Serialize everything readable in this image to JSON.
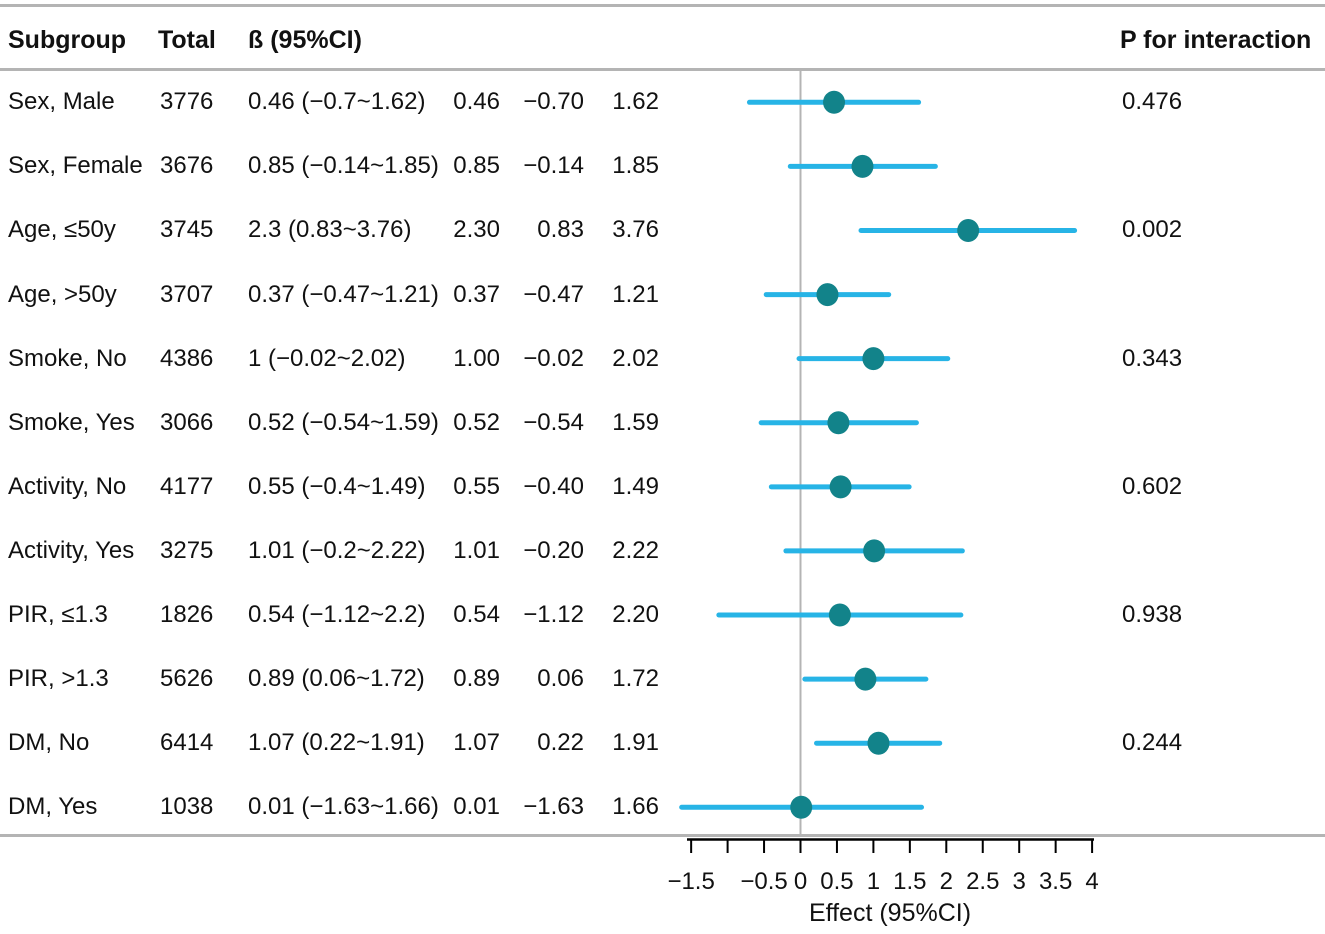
{
  "header": {
    "subgroup": "Subgroup",
    "total": "Total",
    "beta_ci": "ß (95%CI)",
    "p_interaction": "P for interaction"
  },
  "chart_data": {
    "type": "scatter",
    "subtype": "forest-plot",
    "title": "",
    "xlabel": "Effect (95%CI)",
    "ylabel": "",
    "xlim": [
      -1.5,
      4
    ],
    "x_ticks": [
      -1.5,
      -1,
      -0.5,
      0,
      0.5,
      1,
      1.5,
      2,
      2.5,
      3,
      3.5,
      4
    ],
    "x_tick_labels": [
      "−1.5",
      "",
      "−0.5",
      "0",
      "0.5",
      "1",
      "1.5",
      "2",
      "2.5",
      "3",
      "3.5",
      "4"
    ],
    "reference_line_x": 0,
    "grid": false,
    "colors": {
      "ci_line": "#27b4e6",
      "point": "#12838a",
      "rule_gray": "#b4b4b4",
      "axis": "#000000"
    },
    "rows": [
      {
        "subgroup": "Sex, Male",
        "total": "3776",
        "beta_ci": "0.46 (−0.7~1.62)",
        "effect_text": "0.46",
        "lower_text": "−0.70",
        "upper_text": "1.62",
        "p_interaction": "0.476",
        "effect": 0.46,
        "lower": -0.7,
        "upper": 1.62
      },
      {
        "subgroup": "Sex, Female",
        "total": "3676",
        "beta_ci": "0.85 (−0.14~1.85)",
        "effect_text": "0.85",
        "lower_text": "−0.14",
        "upper_text": "1.85",
        "p_interaction": "",
        "effect": 0.85,
        "lower": -0.14,
        "upper": 1.85
      },
      {
        "subgroup": "Age, ≤50y",
        "total": "3745",
        "beta_ci": "2.3 (0.83~3.76)",
        "effect_text": "2.30",
        "lower_text": "0.83",
        "upper_text": "3.76",
        "p_interaction": "0.002",
        "effect": 2.3,
        "lower": 0.83,
        "upper": 3.76
      },
      {
        "subgroup": "Age, >50y",
        "total": "3707",
        "beta_ci": "0.37 (−0.47~1.21)",
        "effect_text": "0.37",
        "lower_text": "−0.47",
        "upper_text": "1.21",
        "p_interaction": "",
        "effect": 0.37,
        "lower": -0.47,
        "upper": 1.21
      },
      {
        "subgroup": "Smoke, No",
        "total": "4386",
        "beta_ci": "1 (−0.02~2.02)",
        "effect_text": "1.00",
        "lower_text": "−0.02",
        "upper_text": "2.02",
        "p_interaction": "0.343",
        "effect": 1.0,
        "lower": -0.02,
        "upper": 2.02
      },
      {
        "subgroup": "Smoke, Yes",
        "total": "3066",
        "beta_ci": "0.52 (−0.54~1.59)",
        "effect_text": "0.52",
        "lower_text": "−0.54",
        "upper_text": "1.59",
        "p_interaction": "",
        "effect": 0.52,
        "lower": -0.54,
        "upper": 1.59
      },
      {
        "subgroup": "Activity, No",
        "total": "4177",
        "beta_ci": "0.55 (−0.4~1.49)",
        "effect_text": "0.55",
        "lower_text": "−0.40",
        "upper_text": "1.49",
        "p_interaction": "0.602",
        "effect": 0.55,
        "lower": -0.4,
        "upper": 1.49
      },
      {
        "subgroup": "Activity, Yes",
        "total": "3275",
        "beta_ci": "1.01 (−0.2~2.22)",
        "effect_text": "1.01",
        "lower_text": "−0.20",
        "upper_text": "2.22",
        "p_interaction": "",
        "effect": 1.01,
        "lower": -0.2,
        "upper": 2.22
      },
      {
        "subgroup": "PIR, ≤1.3",
        "total": "1826",
        "beta_ci": "0.54 (−1.12~2.2)",
        "effect_text": "0.54",
        "lower_text": "−1.12",
        "upper_text": "2.20",
        "p_interaction": "0.938",
        "effect": 0.54,
        "lower": -1.12,
        "upper": 2.2
      },
      {
        "subgroup": "PIR, >1.3",
        "total": "5626",
        "beta_ci": "0.89 (0.06~1.72)",
        "effect_text": "0.89",
        "lower_text": "0.06",
        "upper_text": "1.72",
        "p_interaction": "",
        "effect": 0.89,
        "lower": 0.06,
        "upper": 1.72
      },
      {
        "subgroup": "DM, No",
        "total": "6414",
        "beta_ci": "1.07 (0.22~1.91)",
        "effect_text": "1.07",
        "lower_text": "0.22",
        "upper_text": "1.91",
        "p_interaction": "0.244",
        "effect": 1.07,
        "lower": 0.22,
        "upper": 1.91
      },
      {
        "subgroup": "DM, Yes",
        "total": "1038",
        "beta_ci": "0.01 (−1.63~1.66)",
        "effect_text": "0.01",
        "lower_text": "−1.63",
        "upper_text": "1.66",
        "p_interaction": "",
        "effect": 0.01,
        "lower": -1.63,
        "upper": 1.66
      }
    ]
  }
}
